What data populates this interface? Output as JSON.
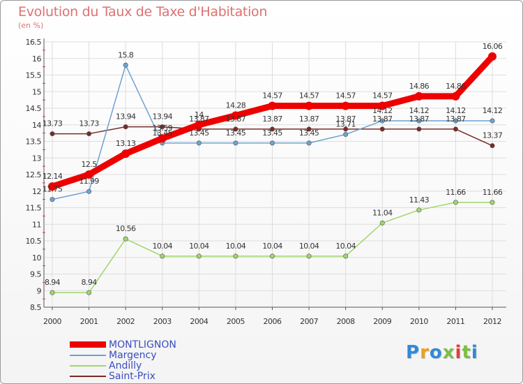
{
  "title": "Evolution du Taux de Taxe d'Habitation",
  "subtitle": "(en %)",
  "logo": {
    "text": "Proxiti",
    "colors": [
      "#2f8ad8",
      "#e8a21c",
      "#2f8ad8",
      "#7ac043",
      "#e03e3e",
      "#7ac043",
      "#2f8ad8"
    ]
  },
  "chart_data": {
    "type": "line",
    "x": [
      "2000",
      "2001",
      "2002",
      "2003",
      "2004",
      "2005",
      "2006",
      "2007",
      "2008",
      "2009",
      "2010",
      "2011",
      "2012"
    ],
    "ylim": [
      8.5,
      16.5
    ],
    "yticks": [
      "8.5",
      "9",
      "9.5",
      "10",
      "10.5",
      "11",
      "11.5",
      "12",
      "12.5",
      "13",
      "13.5",
      "14",
      "14.5",
      "15",
      "15.5",
      "16",
      "16.5"
    ],
    "grid": true,
    "legend_position": "bottom-left",
    "series": [
      {
        "name": "Saint-Prix",
        "color": "#7a2a2a",
        "values": [
          13.73,
          13.73,
          13.94,
          13.94,
          13.87,
          13.87,
          13.87,
          13.87,
          13.87,
          13.87,
          13.87,
          13.87,
          13.37
        ],
        "labels": [
          "13.73",
          "13.73",
          "13.94",
          "13.94",
          "13.87",
          "13.87",
          "13.87",
          "13.87",
          "13.87",
          "13.87",
          "13.87",
          "13.87",
          "13.37"
        ]
      },
      {
        "name": "Andilly",
        "color": "#9fd66a",
        "values": [
          8.94,
          8.94,
          10.56,
          10.04,
          10.04,
          10.04,
          10.04,
          10.04,
          10.04,
          11.04,
          11.43,
          11.66,
          11.66
        ],
        "labels": [
          "8.94",
          "8.94",
          "10.56",
          "10.04",
          "10.04",
          "10.04",
          "10.04",
          "10.04",
          "10.04",
          "11.04",
          "11.43",
          "11.66",
          "11.66"
        ]
      },
      {
        "name": "Margency",
        "color": "#6fa2d0",
        "values": [
          11.75,
          11.99,
          15.8,
          13.45,
          13.45,
          13.45,
          13.45,
          13.45,
          13.71,
          14.12,
          14.12,
          14.12,
          14.12
        ],
        "labels": [
          "11.75",
          "11.99",
          "15.8",
          "13.45",
          "13.45",
          "13.45",
          "13.45",
          "13.45",
          "13.71",
          "14.12",
          "14.12",
          "14.12",
          "14.12"
        ]
      },
      {
        "name": "MONTLIGNON",
        "color": "#ee0000",
        "values": [
          12.14,
          12.5,
          13.13,
          13.59,
          14.0,
          14.28,
          14.57,
          14.57,
          14.57,
          14.57,
          14.86,
          14.86,
          16.06
        ],
        "labels": [
          "12.14",
          "12.5",
          "13.13",
          "13.59",
          "14",
          "14.28",
          "14.57",
          "14.57",
          "14.57",
          "14.57",
          "14.86",
          "14.86",
          "16.06"
        ]
      }
    ]
  }
}
